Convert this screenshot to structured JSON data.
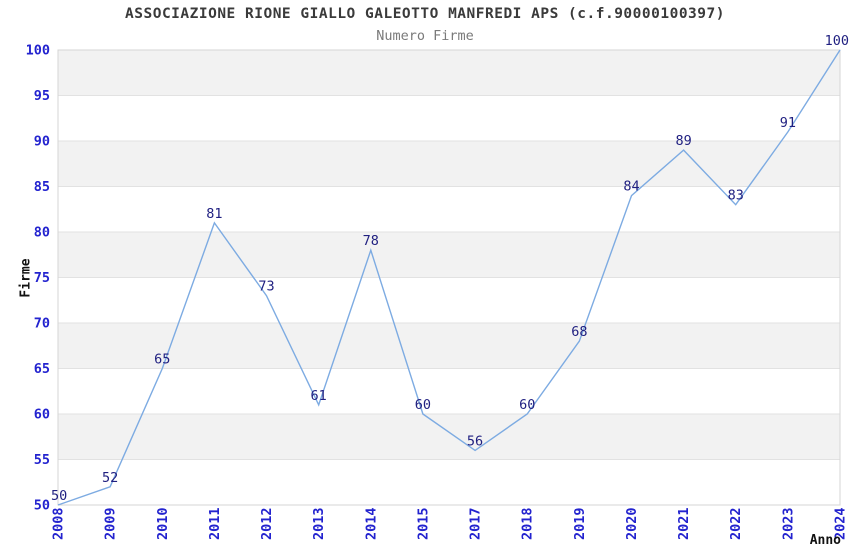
{
  "chart_data": {
    "type": "line",
    "title": "ASSOCIAZIONE RIONE GIALLO GALEOTTO MANFREDI APS (c.f.90000100397)",
    "subtitle": "Numero Firme",
    "xlabel": "Anno",
    "ylabel": "Firme",
    "categories": [
      "2008",
      "2009",
      "2010",
      "2011",
      "2012",
      "2013",
      "2014",
      "2015",
      "2017",
      "2018",
      "2019",
      "2020",
      "2021",
      "2022",
      "2023",
      "2024"
    ],
    "values": [
      50,
      52,
      65,
      81,
      73,
      61,
      78,
      60,
      56,
      60,
      68,
      84,
      89,
      83,
      91,
      100
    ],
    "ylim": [
      50,
      100
    ],
    "ytick_step": 5,
    "grid": true,
    "legend": "none",
    "alternating_bands": true,
    "data_labels_shown": true
  },
  "colors": {
    "series_line": "#7dabe2",
    "tick_label": "#2323cf",
    "data_label": "#1f1f80",
    "band_fill": "#f2f2f2",
    "grid_line": "#e2e2e2",
    "plot_border": "#d5d5d5",
    "title_text": "#3a3a3a",
    "subtitle_text": "#7a7a7a",
    "axis_title_text": "#111111",
    "background": "#ffffff"
  }
}
